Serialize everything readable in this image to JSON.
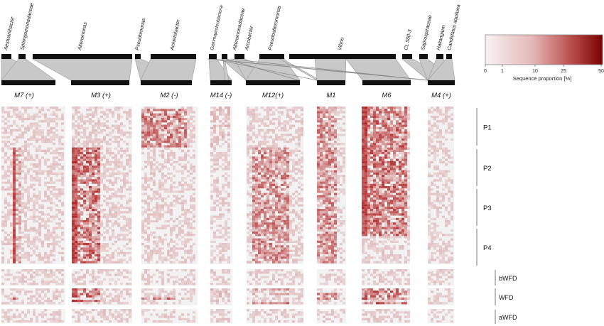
{
  "taxa": [
    {
      "name": "Aestuariibacter"
    },
    {
      "name": "Sphingomonadaceae"
    },
    {
      "name": "Alteromonas"
    },
    {
      "name": "Pseudomonas"
    },
    {
      "name": "Acinetobacter"
    },
    {
      "name": "Gammaproteobacteria"
    },
    {
      "name": "Alteromonadaceae"
    },
    {
      "name": "Arcobacter"
    },
    {
      "name": "Pseudoalteromonas"
    },
    {
      "name": "Vibrio"
    },
    {
      "name": "CL 500-3"
    },
    {
      "name": "Saprospiraceae"
    },
    {
      "name": "Haliangium"
    },
    {
      "name": "Candidatus aquiluna"
    }
  ],
  "modules": [
    {
      "label": "M7 (+)"
    },
    {
      "label": "M3 (+)"
    },
    {
      "label": "M2 (-)"
    },
    {
      "label": "M14 (-)"
    },
    {
      "label": "M12(+)"
    },
    {
      "label": "M1"
    },
    {
      "label": "M6"
    },
    {
      "label": "M4 (+)"
    }
  ],
  "periods": [
    {
      "label": "P1"
    },
    {
      "label": "P2"
    },
    {
      "label": "P3"
    },
    {
      "label": "P4"
    }
  ],
  "phases": [
    {
      "label": "bWFD"
    },
    {
      "label": "WFD"
    },
    {
      "label": "aWFD"
    }
  ],
  "legend": {
    "title": "Sequence proportion [%]",
    "ticks": [
      "0",
      "1",
      "10",
      "25",
      "50"
    ],
    "color_low": "#f7f1f1",
    "color_high": "#8b0000"
  },
  "colors": {
    "bar": "#111111",
    "band": "#c8c8c8",
    "cell_bg": "#f2f2f2",
    "heat": "#b22222"
  }
}
